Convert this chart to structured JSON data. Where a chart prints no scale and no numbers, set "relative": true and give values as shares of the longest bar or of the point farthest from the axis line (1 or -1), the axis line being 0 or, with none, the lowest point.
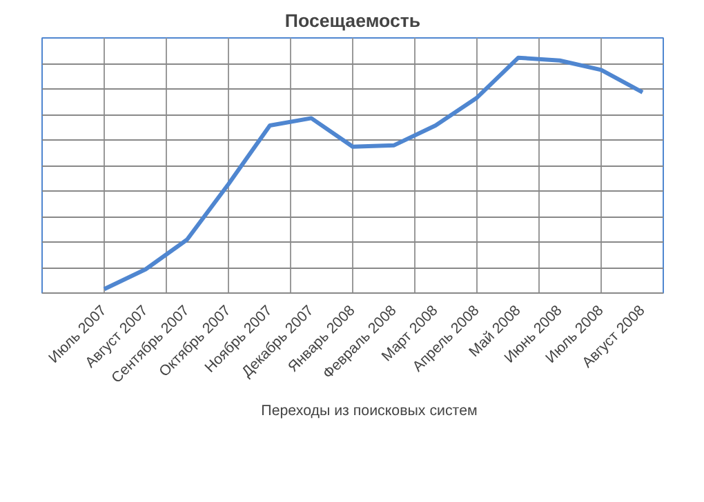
{
  "chart_data": {
    "type": "line",
    "title": "Посещаемость",
    "relative": true,
    "grid": true,
    "legend": "bottom",
    "categories": [
      "Июль 2007",
      "Август 2007",
      "Сентябрь 2007",
      "Октябрь 2007",
      "Ноябрь 2007",
      "Декабрь 2007",
      "Январь 2008",
      "Февраль 2008",
      "Март 2008",
      "Апрель 2008",
      "Май 2008",
      "Июнь 2008",
      "Июль 2008",
      "Август 2008"
    ],
    "series": [
      {
        "name": "Переходы из поисковых систем",
        "color": "#4f86d0",
        "values": [
          0.017,
          0.101,
          0.227,
          0.463,
          0.712,
          0.743,
          0.622,
          0.628,
          0.712,
          0.83,
          1,
          0.988,
          0.948,
          0.853
        ]
      }
    ]
  }
}
